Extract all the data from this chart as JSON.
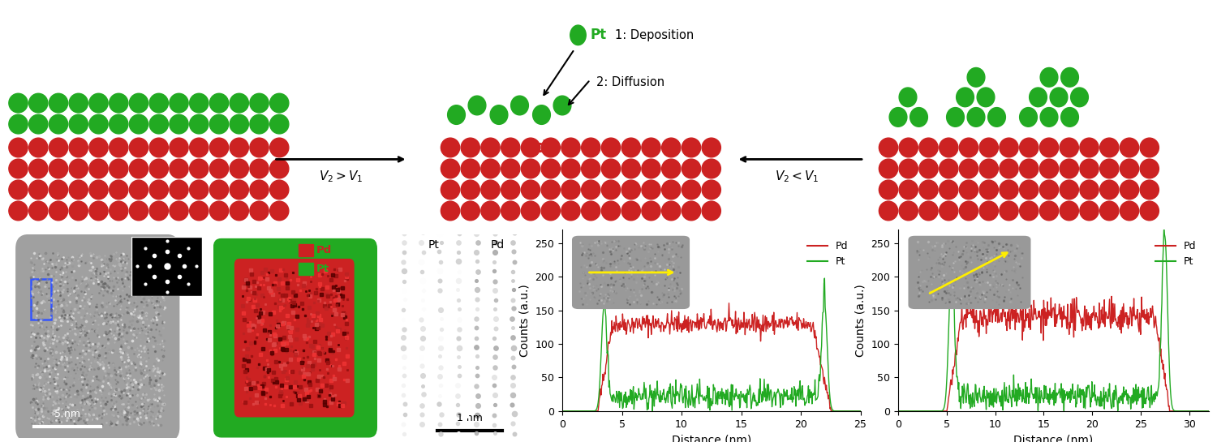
{
  "fig_width": 15.0,
  "fig_height": 5.45,
  "background": "#ffffff",
  "top_diagram": {
    "green_color": "#22aa22",
    "red_color": "#cc2222",
    "Pd_label_color": "#cc2222",
    "Pt_label_color": "#22aa22",
    "label_v2v1_left": "$V_2 > V_1$",
    "label_v2v1_right": "$V_2 < V_1$",
    "label_deposition": "1: Deposition",
    "label_diffusion": "2: Diffusion",
    "label_Pd": "Pd",
    "label_Pt": "Pt"
  },
  "graph1": {
    "xlabel": "Distance (nm)",
    "ylabel": "Counts (a.u.)",
    "xlim": [
      0,
      25
    ],
    "ylim": [
      0,
      270
    ],
    "xticks": [
      0,
      5,
      10,
      15,
      20,
      25
    ],
    "yticks": [
      0,
      50,
      100,
      150,
      200,
      250
    ],
    "pd_color": "#cc2222",
    "pt_color": "#22aa22",
    "pd_label": "Pd",
    "pt_label": "Pt"
  },
  "graph2": {
    "xlabel": "Distance (nm)",
    "ylabel": "Counts (a.u.)",
    "xlim": [
      0,
      32
    ],
    "ylim": [
      0,
      270
    ],
    "xticks": [
      0,
      5,
      10,
      15,
      20,
      25,
      30
    ],
    "yticks": [
      0,
      50,
      100,
      150,
      200,
      250
    ],
    "pd_color": "#cc2222",
    "pt_color": "#22aa22",
    "pd_label": "Pd",
    "pt_label": "Pt"
  }
}
